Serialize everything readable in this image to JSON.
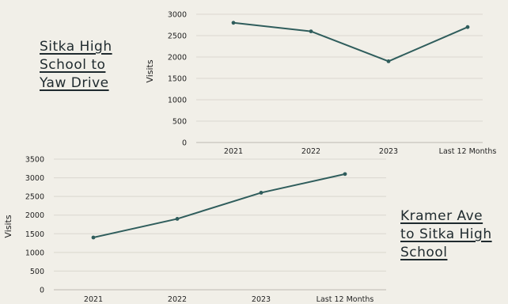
{
  "chart_data": [
    {
      "id": "top",
      "type": "line",
      "title": "Sitka High School to Yaw Drive",
      "title_lines": [
        "Sitka High",
        "School to",
        "Yaw Drive"
      ],
      "categories": [
        "2021",
        "2022",
        "2023",
        "Last 12 Months"
      ],
      "series": [
        {
          "values": [
            2800,
            2600,
            1900,
            2700
          ]
        }
      ],
      "ylabel": "Visits",
      "xlabel": "",
      "ylim": [
        0,
        3000
      ],
      "yticks": [
        0,
        500,
        1000,
        1500,
        2000,
        2500,
        3000
      ],
      "grid": true,
      "line_color": "#2f5d5c"
    },
    {
      "id": "bottom",
      "type": "line",
      "title": "Kramer Ave to Sitka High School",
      "title_lines": [
        "Kramer Ave",
        "to Sitka High",
        "School"
      ],
      "categories": [
        "2021",
        "2022",
        "2023",
        "Last 12 Months"
      ],
      "series": [
        {
          "values": [
            1400,
            1900,
            2600,
            3100
          ]
        }
      ],
      "ylabel": "Visits",
      "xlabel": "",
      "ylim": [
        0,
        3500
      ],
      "yticks": [
        0,
        500,
        1000,
        1500,
        2000,
        2500,
        3000,
        3500
      ],
      "grid": true,
      "line_color": "#2f5d5c"
    }
  ]
}
